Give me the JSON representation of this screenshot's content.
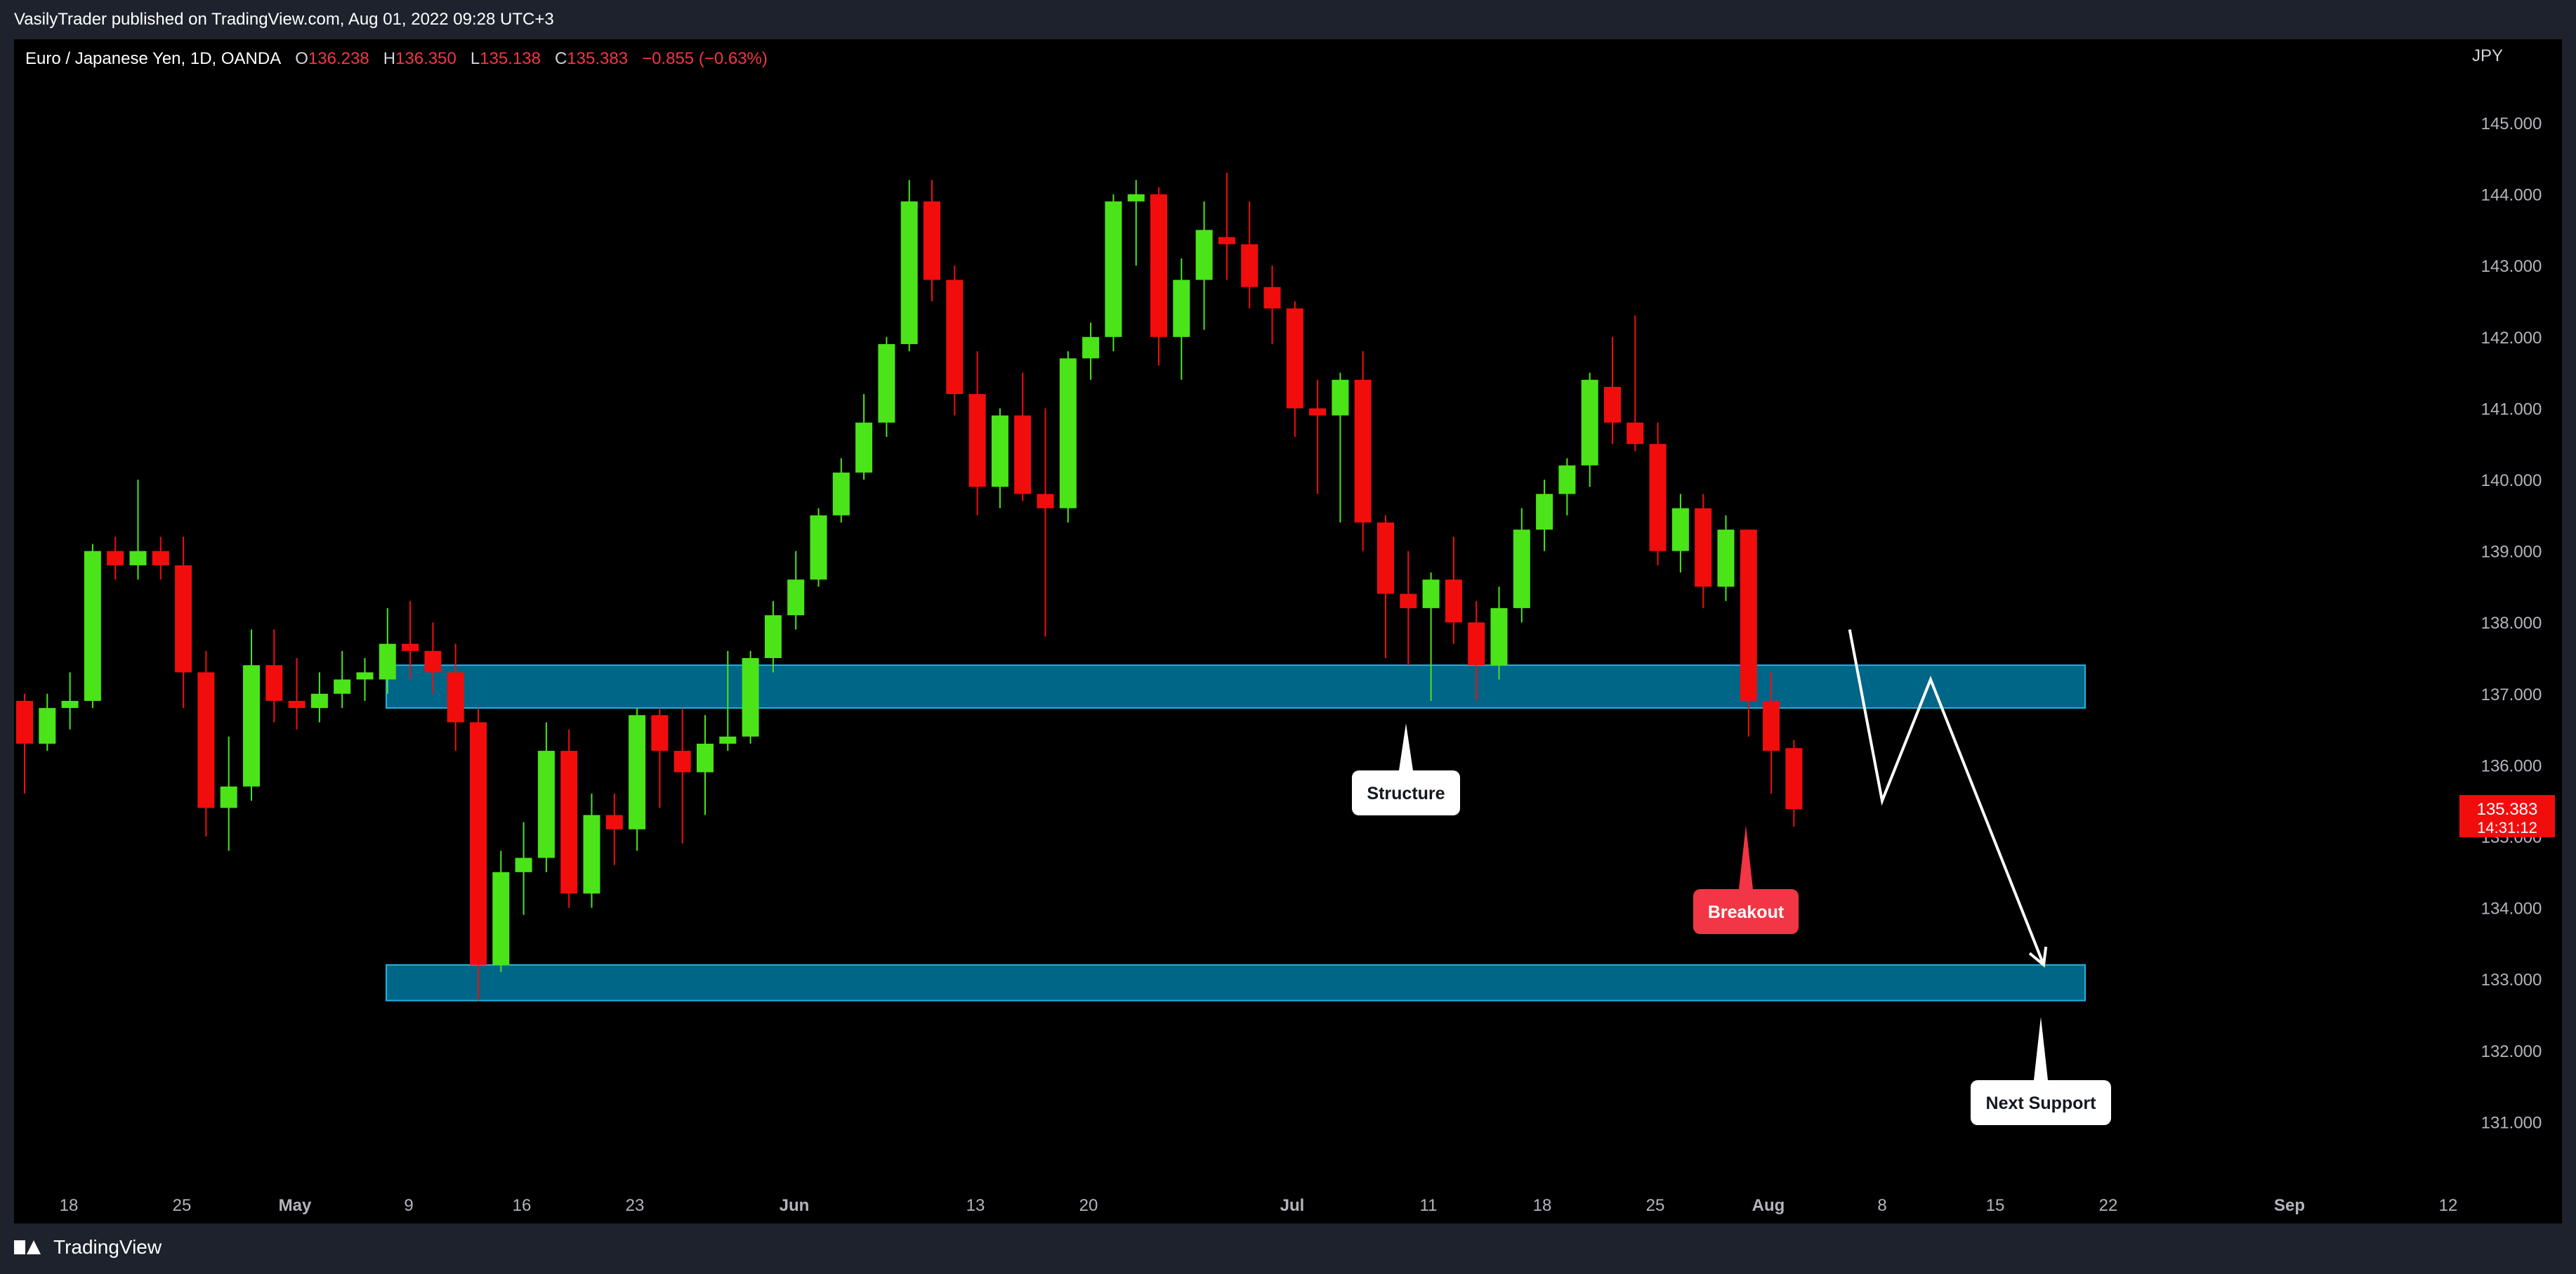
{
  "header": {
    "published_by": "VasilyTrader published on TradingView.com, Aug 01, 2022 09:28 UTC+3"
  },
  "legend": {
    "symbol": "Euro / Japanese Yen, 1D, OANDA",
    "open_label": "O",
    "open": "136.238",
    "high_label": "H",
    "high": "136.350",
    "low_label": "L",
    "low": "135.138",
    "close_label": "C",
    "close": "135.383",
    "change": "−0.855 (−0.63%)"
  },
  "currency": "JPY",
  "price_badge": {
    "price": "135.383",
    "countdown": "14:31:12"
  },
  "annotations": {
    "structure": "Structure",
    "breakout": "Breakout",
    "next_support": "Next Support"
  },
  "footer": {
    "brand": "TradingView"
  },
  "colors": {
    "up": "#4be419",
    "down": "#f20d0d",
    "zone_fill": "#006687",
    "zone_stroke": "#22b4e0",
    "breakout_label": "#f23645",
    "axis_text": "#b2b5be",
    "background": "#000000"
  },
  "chart_data": {
    "type": "candlestick",
    "symbol": "EURJPY",
    "interval": "1D",
    "ylim": [
      130.25,
      145.8
    ],
    "y_ticks": [
      131,
      132,
      133,
      134,
      135,
      136,
      137,
      138,
      139,
      140,
      141,
      142,
      143,
      144,
      145
    ],
    "x_ticks": [
      {
        "label": "18",
        "date": "2022-04-18"
      },
      {
        "label": "25",
        "date": "2022-04-25"
      },
      {
        "label": "May",
        "date": "2022-05-02"
      },
      {
        "label": "9",
        "date": "2022-05-09"
      },
      {
        "label": "16",
        "date": "2022-05-16"
      },
      {
        "label": "23",
        "date": "2022-05-23"
      },
      {
        "label": "Jun",
        "date": "2022-06-01"
      },
      {
        "label": "13",
        "date": "2022-06-13"
      },
      {
        "label": "20",
        "date": "2022-06-20"
      },
      {
        "label": "Jul",
        "date": "2022-07-01"
      },
      {
        "label": "11",
        "date": "2022-07-11"
      },
      {
        "label": "18",
        "date": "2022-07-18"
      },
      {
        "label": "25",
        "date": "2022-07-25"
      },
      {
        "label": "Aug",
        "date": "2022-08-01"
      },
      {
        "label": "8",
        "date": "2022-08-08"
      },
      {
        "label": "15",
        "date": "2022-08-15"
      },
      {
        "label": "22",
        "date": "2022-08-22"
      },
      {
        "label": "Sep",
        "date": "2022-09-01"
      },
      {
        "label": "12",
        "date": "2022-09-12"
      }
    ],
    "candles": [
      {
        "date": "2022-04-14",
        "o": 136.9,
        "h": 137.0,
        "l": 135.6,
        "c": 136.3
      },
      {
        "date": "2022-04-18",
        "o": 136.3,
        "h": 137.0,
        "l": 136.2,
        "c": 136.8
      },
      {
        "date": "2022-04-19",
        "o": 136.8,
        "h": 137.3,
        "l": 136.5,
        "c": 136.9
      },
      {
        "date": "2022-04-20",
        "o": 136.9,
        "h": 139.1,
        "l": 136.8,
        "c": 139.0
      },
      {
        "date": "2022-04-21",
        "o": 139.0,
        "h": 139.2,
        "l": 138.6,
        "c": 138.8
      },
      {
        "date": "2022-04-22",
        "o": 138.8,
        "h": 140.0,
        "l": 138.6,
        "c": 139.0
      },
      {
        "date": "2022-04-25",
        "o": 139.0,
        "h": 139.2,
        "l": 138.6,
        "c": 138.8
      },
      {
        "date": "2022-04-26",
        "o": 138.8,
        "h": 139.2,
        "l": 136.8,
        "c": 137.3
      },
      {
        "date": "2022-04-27",
        "o": 137.3,
        "h": 137.6,
        "l": 135.0,
        "c": 135.4
      },
      {
        "date": "2022-04-28",
        "o": 135.4,
        "h": 136.4,
        "l": 134.8,
        "c": 135.7
      },
      {
        "date": "2022-04-29",
        "o": 135.7,
        "h": 137.9,
        "l": 135.5,
        "c": 137.4
      },
      {
        "date": "2022-05-02",
        "o": 137.4,
        "h": 137.9,
        "l": 136.6,
        "c": 136.9
      },
      {
        "date": "2022-05-03",
        "o": 136.9,
        "h": 137.5,
        "l": 136.5,
        "c": 136.8
      },
      {
        "date": "2022-05-04",
        "o": 136.8,
        "h": 137.3,
        "l": 136.6,
        "c": 137.0
      },
      {
        "date": "2022-05-05",
        "o": 137.0,
        "h": 137.6,
        "l": 136.8,
        "c": 137.2
      },
      {
        "date": "2022-05-06",
        "o": 137.2,
        "h": 137.5,
        "l": 136.9,
        "c": 137.3
      },
      {
        "date": "2022-05-09",
        "o": 137.2,
        "h": 138.2,
        "l": 137.0,
        "c": 137.7
      },
      {
        "date": "2022-05-10",
        "o": 137.7,
        "h": 138.3,
        "l": 137.2,
        "c": 137.6
      },
      {
        "date": "2022-05-11",
        "o": 137.6,
        "h": 138.0,
        "l": 137.0,
        "c": 137.3
      },
      {
        "date": "2022-05-12",
        "o": 137.3,
        "h": 137.7,
        "l": 136.2,
        "c": 136.6
      },
      {
        "date": "2022-05-13",
        "o": 136.6,
        "h": 136.8,
        "l": 132.7,
        "c": 133.2
      },
      {
        "date": "2022-05-16",
        "o": 133.2,
        "h": 134.8,
        "l": 133.1,
        "c": 134.5
      },
      {
        "date": "2022-05-17",
        "o": 134.5,
        "h": 135.2,
        "l": 133.9,
        "c": 134.7
      },
      {
        "date": "2022-05-18",
        "o": 134.7,
        "h": 136.6,
        "l": 134.5,
        "c": 136.2
      },
      {
        "date": "2022-05-19",
        "o": 136.2,
        "h": 136.5,
        "l": 134.0,
        "c": 134.2
      },
      {
        "date": "2022-05-20",
        "o": 134.2,
        "h": 135.6,
        "l": 134.0,
        "c": 135.3
      },
      {
        "date": "2022-05-23",
        "o": 135.3,
        "h": 135.6,
        "l": 134.6,
        "c": 135.1
      },
      {
        "date": "2022-05-24",
        "o": 135.1,
        "h": 136.8,
        "l": 134.8,
        "c": 136.7
      },
      {
        "date": "2022-05-25",
        "o": 136.7,
        "h": 136.8,
        "l": 135.4,
        "c": 136.2
      },
      {
        "date": "2022-05-26",
        "o": 136.2,
        "h": 136.8,
        "l": 134.9,
        "c": 135.9
      },
      {
        "date": "2022-05-27",
        "o": 135.9,
        "h": 136.7,
        "l": 135.3,
        "c": 136.3
      },
      {
        "date": "2022-05-30",
        "o": 136.3,
        "h": 137.6,
        "l": 136.2,
        "c": 136.4
      },
      {
        "date": "2022-05-31",
        "o": 136.4,
        "h": 137.6,
        "l": 136.3,
        "c": 137.5
      },
      {
        "date": "2022-06-01",
        "o": 137.5,
        "h": 138.3,
        "l": 137.3,
        "c": 138.1
      },
      {
        "date": "2022-06-02",
        "o": 138.1,
        "h": 139.0,
        "l": 137.9,
        "c": 138.6
      },
      {
        "date": "2022-06-03",
        "o": 138.6,
        "h": 139.6,
        "l": 138.5,
        "c": 139.5
      },
      {
        "date": "2022-06-06",
        "o": 139.5,
        "h": 140.3,
        "l": 139.4,
        "c": 140.1
      },
      {
        "date": "2022-06-07",
        "o": 140.1,
        "h": 141.2,
        "l": 140.0,
        "c": 140.8
      },
      {
        "date": "2022-06-08",
        "o": 140.8,
        "h": 142.0,
        "l": 140.6,
        "c": 141.9
      },
      {
        "date": "2022-06-09",
        "o": 141.9,
        "h": 144.2,
        "l": 141.8,
        "c": 143.9
      },
      {
        "date": "2022-06-10",
        "o": 143.9,
        "h": 144.2,
        "l": 142.5,
        "c": 142.8
      },
      {
        "date": "2022-06-13",
        "o": 142.8,
        "h": 143.0,
        "l": 140.9,
        "c": 141.2
      },
      {
        "date": "2022-06-14",
        "o": 141.2,
        "h": 141.8,
        "l": 139.5,
        "c": 139.9
      },
      {
        "date": "2022-06-15",
        "o": 139.9,
        "h": 141.0,
        "l": 139.6,
        "c": 140.9
      },
      {
        "date": "2022-06-16",
        "o": 140.9,
        "h": 141.5,
        "l": 139.7,
        "c": 139.8
      },
      {
        "date": "2022-06-17",
        "o": 139.8,
        "h": 141.0,
        "l": 137.8,
        "c": 139.6
      },
      {
        "date": "2022-06-20",
        "o": 139.6,
        "h": 141.8,
        "l": 139.4,
        "c": 141.7
      },
      {
        "date": "2022-06-21",
        "o": 141.7,
        "h": 142.2,
        "l": 141.4,
        "c": 142.0
      },
      {
        "date": "2022-06-22",
        "o": 142.0,
        "h": 144.0,
        "l": 141.8,
        "c": 143.9
      },
      {
        "date": "2022-06-23",
        "o": 143.9,
        "h": 144.2,
        "l": 143.0,
        "c": 144.0
      },
      {
        "date": "2022-06-24",
        "o": 144.0,
        "h": 144.1,
        "l": 141.6,
        "c": 142.0
      },
      {
        "date": "2022-06-27",
        "o": 142.0,
        "h": 143.1,
        "l": 141.4,
        "c": 142.8
      },
      {
        "date": "2022-06-28",
        "o": 142.8,
        "h": 143.9,
        "l": 142.1,
        "c": 143.5
      },
      {
        "date": "2022-06-29",
        "o": 143.4,
        "h": 144.3,
        "l": 142.8,
        "c": 143.3
      },
      {
        "date": "2022-06-30",
        "o": 143.3,
        "h": 143.9,
        "l": 142.4,
        "c": 142.7
      },
      {
        "date": "2022-07-01",
        "o": 142.7,
        "h": 143.0,
        "l": 141.9,
        "c": 142.4
      },
      {
        "date": "2022-07-04",
        "o": 142.4,
        "h": 142.5,
        "l": 140.6,
        "c": 141.0
      },
      {
        "date": "2022-07-05",
        "o": 141.0,
        "h": 141.4,
        "l": 139.8,
        "c": 140.9
      },
      {
        "date": "2022-07-06",
        "o": 140.9,
        "h": 141.5,
        "l": 139.4,
        "c": 141.4
      },
      {
        "date": "2022-07-07",
        "o": 141.4,
        "h": 141.8,
        "l": 139.0,
        "c": 139.4
      },
      {
        "date": "2022-07-08",
        "o": 139.4,
        "h": 139.5,
        "l": 137.5,
        "c": 138.4
      },
      {
        "date": "2022-07-11",
        "o": 138.4,
        "h": 139.0,
        "l": 137.4,
        "c": 138.2
      },
      {
        "date": "2022-07-12",
        "o": 138.2,
        "h": 138.7,
        "l": 136.9,
        "c": 138.6
      },
      {
        "date": "2022-07-13",
        "o": 138.6,
        "h": 139.2,
        "l": 137.7,
        "c": 138.0
      },
      {
        "date": "2022-07-14",
        "o": 138.0,
        "h": 138.3,
        "l": 136.9,
        "c": 137.4
      },
      {
        "date": "2022-07-15",
        "o": 137.4,
        "h": 138.5,
        "l": 137.2,
        "c": 138.2
      },
      {
        "date": "2022-07-18",
        "o": 138.2,
        "h": 139.6,
        "l": 138.0,
        "c": 139.3
      },
      {
        "date": "2022-07-19",
        "o": 139.3,
        "h": 140.0,
        "l": 139.0,
        "c": 139.8
      },
      {
        "date": "2022-07-20",
        "o": 139.8,
        "h": 140.3,
        "l": 139.5,
        "c": 140.2
      },
      {
        "date": "2022-07-21",
        "o": 140.2,
        "h": 141.5,
        "l": 139.9,
        "c": 141.4
      },
      {
        "date": "2022-07-22",
        "o": 141.3,
        "h": 142.0,
        "l": 140.5,
        "c": 140.8
      },
      {
        "date": "2022-07-25",
        "o": 140.8,
        "h": 142.3,
        "l": 140.4,
        "c": 140.5
      },
      {
        "date": "2022-07-26",
        "o": 140.5,
        "h": 140.8,
        "l": 138.8,
        "c": 139.0
      },
      {
        "date": "2022-07-27",
        "o": 139.0,
        "h": 139.8,
        "l": 138.7,
        "c": 139.6
      },
      {
        "date": "2022-07-28",
        "o": 139.6,
        "h": 139.8,
        "l": 138.2,
        "c": 138.5
      },
      {
        "date": "2022-07-29",
        "o": 138.5,
        "h": 139.5,
        "l": 138.3,
        "c": 139.3
      },
      {
        "date": "2022-07-29b",
        "o": 139.3,
        "h": 139.3,
        "l": 136.4,
        "c": 136.9
      },
      {
        "date": "2022-07-29c",
        "o": 136.9,
        "h": 137.3,
        "l": 135.6,
        "c": 136.2
      },
      {
        "date": "2022-08-01",
        "o": 136.238,
        "h": 136.35,
        "l": 135.138,
        "c": 135.383
      }
    ],
    "zones": [
      {
        "from_date": "2022-05-09",
        "to_date": "2022-08-22",
        "low": 136.8,
        "high": 137.4
      },
      {
        "from_date": "2022-05-09",
        "to_date": "2022-08-22",
        "low": 132.7,
        "high": 133.2
      }
    ],
    "projection_path": [
      {
        "date": "2022-08-06",
        "price": 137.9
      },
      {
        "date": "2022-08-08",
        "price": 135.5
      },
      {
        "date": "2022-08-11",
        "price": 137.2
      },
      {
        "date": "2022-08-18",
        "price": 133.2
      }
    ]
  }
}
